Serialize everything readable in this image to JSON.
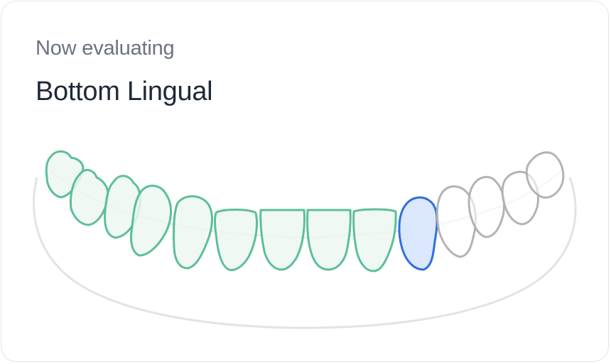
{
  "header": {
    "subtitle": "Now evaluating",
    "title": "Bottom Lingual"
  },
  "colors": {
    "evaluated": "#5cbf98",
    "current": "#2f6fe0",
    "pending": "#b3b3b3"
  },
  "teeth": [
    {
      "status": "evaluated"
    },
    {
      "status": "evaluated"
    },
    {
      "status": "evaluated"
    },
    {
      "status": "evaluated"
    },
    {
      "status": "evaluated"
    },
    {
      "status": "evaluated"
    },
    {
      "status": "evaluated"
    },
    {
      "status": "evaluated"
    },
    {
      "status": "evaluated"
    },
    {
      "status": "current"
    },
    {
      "status": "pending"
    },
    {
      "status": "pending"
    },
    {
      "status": "pending"
    },
    {
      "status": "pending"
    }
  ]
}
